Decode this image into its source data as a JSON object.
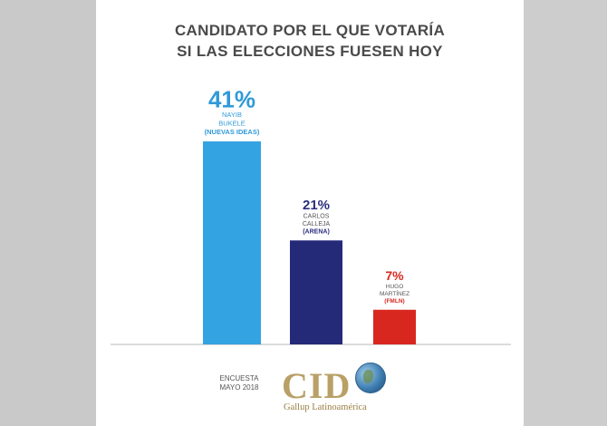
{
  "title_lines": [
    "CANDIDATO POR EL QUE VOTARÍA",
    "SI LAS ELECCIONES FUESEN HOY"
  ],
  "footer": {
    "line1": "ENCUESTA",
    "line2": "MAYO 2018"
  },
  "logo": {
    "text": "CID",
    "subtitle": "Gallup Latinoamérica"
  },
  "chart_data": {
    "type": "bar",
    "categories": [
      "NAYIB BUKELE (NUEVAS IDEAS)",
      "CARLOS CALLEJA (ARENA)",
      "HUGO MARTÍNEZ (FMLN)"
    ],
    "values": [
      41,
      21,
      7
    ],
    "unit": "%",
    "labels": [
      {
        "value_text": "41%",
        "name_lines": [
          "NAYIB",
          "BUKELE",
          "(NUEVAS IDEAS)"
        ]
      },
      {
        "value_text": "21%",
        "name_lines": [
          "CARLOS",
          "CALLEJA",
          "(ARENA)"
        ]
      },
      {
        "value_text": "7%",
        "name_lines": [
          "HUGO",
          "MARTÍNEZ",
          "(FMLN)"
        ]
      }
    ],
    "colors": [
      "#34a3e2",
      "#242a78",
      "#d8271f"
    ],
    "label_colors": [
      "#2f9ad8",
      "#2b2f7f",
      "#d8271f"
    ],
    "title": "",
    "xlabel": "",
    "ylabel": "",
    "ylim": [
      0,
      41
    ],
    "grid": false,
    "legend": "none"
  }
}
